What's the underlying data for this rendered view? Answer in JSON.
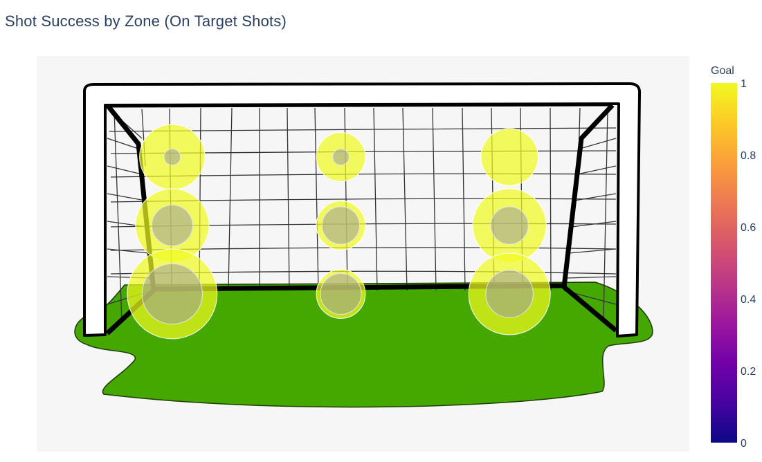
{
  "chart_data": {
    "type": "scatter",
    "title": "Shot Success by Zone (On Target Shots)",
    "xlabel": "",
    "ylabel": "",
    "xlim": [
      0,
      3
    ],
    "ylim": [
      0,
      3
    ],
    "grid": false,
    "background_image": "soccer-goal-with-net-on-grass",
    "colorbar": {
      "title": "Goal",
      "range": [
        0,
        1
      ],
      "ticks": [
        "0",
        "0.2",
        "0.4",
        "0.6",
        "0.8",
        "1"
      ],
      "colors": [
        "#0d0887",
        "#46039f",
        "#7201a8",
        "#9c179e",
        "#bd3786",
        "#d8576b",
        "#ed7953",
        "#fb9f3a",
        "#fdca26",
        "#f0f921"
      ]
    },
    "series": [
      {
        "values": [
          {
            "x": 0.5,
            "y": 2.5,
            "goal": 1,
            "size": 4,
            "color": "#f0f921"
          },
          {
            "x": 1.5,
            "y": 2.5,
            "goal": 1,
            "size": 3,
            "color": "#f0f921"
          },
          {
            "x": 2.5,
            "y": 2.5,
            "goal": 1,
            "size": 3.5,
            "color": "#f0f921"
          },
          {
            "x": 0.5,
            "y": 1.5,
            "goal": 1,
            "size": 4.5,
            "color": "#f0f921"
          },
          {
            "x": 1.5,
            "y": 1.5,
            "goal": 1,
            "size": 3,
            "color": "#f0f921"
          },
          {
            "x": 2.5,
            "y": 1.5,
            "goal": 1,
            "size": 4.5,
            "color": "#f0f921"
          },
          {
            "x": 0.5,
            "y": 0.5,
            "goal": 1,
            "size": 5.5,
            "color": "#f0f921"
          },
          {
            "x": 1.5,
            "y": 0.5,
            "goal": 1,
            "size": 3,
            "color": "#f0f921"
          },
          {
            "x": 2.5,
            "y": 0.5,
            "goal": 1,
            "size": 5,
            "color": "#f0f921"
          }
        ]
      },
      {
        "values": [
          {
            "x": 0.5,
            "y": 2.5,
            "goal": 0,
            "size": 1,
            "color": "#9c9c9c"
          },
          {
            "x": 1.5,
            "y": 2.5,
            "goal": 0,
            "size": 1,
            "color": "#9c9c9c"
          },
          {
            "x": 0.5,
            "y": 1.5,
            "goal": 0,
            "size": 2.5,
            "color": "#9c9c9c"
          },
          {
            "x": 1.5,
            "y": 1.5,
            "goal": 0,
            "size": 2.3,
            "color": "#9c9c9c"
          },
          {
            "x": 2.5,
            "y": 1.5,
            "goal": 0,
            "size": 2.3,
            "color": "#9c9c9c"
          },
          {
            "x": 0.5,
            "y": 0.5,
            "goal": 0,
            "size": 3.7,
            "color": "#9c9c9c"
          },
          {
            "x": 1.5,
            "y": 0.5,
            "goal": 0,
            "size": 2.5,
            "color": "#9c9c9c"
          },
          {
            "x": 2.5,
            "y": 0.5,
            "goal": 0,
            "size": 2.9,
            "color": "#9c9c9c"
          }
        ]
      }
    ]
  }
}
